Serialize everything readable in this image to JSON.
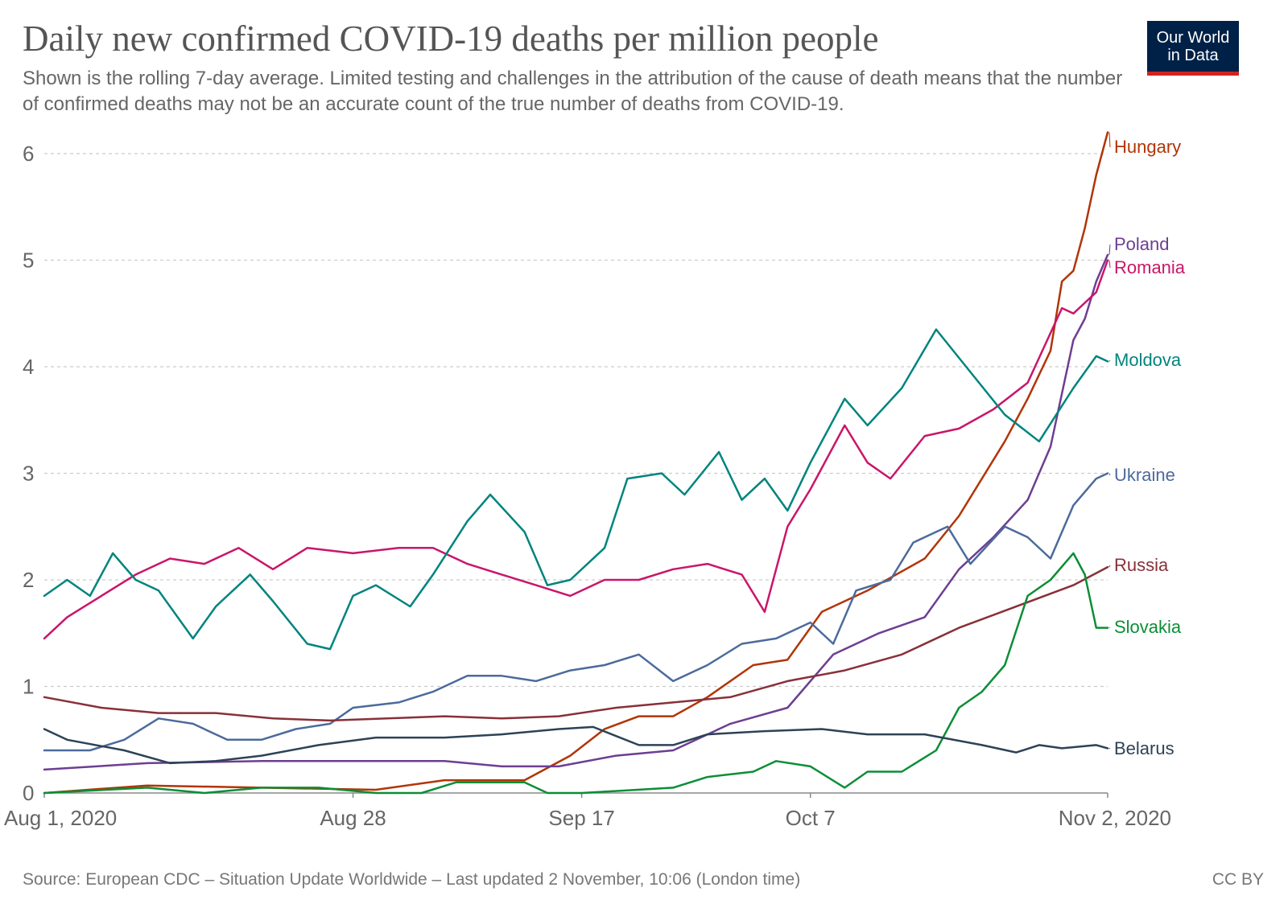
{
  "header": {
    "title": "Daily new confirmed COVID-19 deaths per million people",
    "subtitle": "Shown is the rolling 7-day average. Limited testing and challenges in the attribution of the cause of death means that the number of confirmed deaths may not be an accurate count of the true number of deaths from COVID-19.",
    "logo_line1": "Our World",
    "logo_line2": "in Data"
  },
  "footer": {
    "source": "Source: European CDC – Situation Update Worldwide – Last updated 2 November, 10:06 (London time)",
    "license": "CC BY"
  },
  "colors": {
    "Hungary": "#b13507",
    "Poland": "#6d3e91",
    "Romania": "#c9166a",
    "Moldova": "#00847e",
    "Ukraine": "#4c6a9c",
    "Russia": "#883039",
    "Slovakia": "#0b8e36",
    "Belarus": "#2d4256",
    "grid": "#cccccc",
    "axis": "#888888"
  },
  "chart_data": {
    "type": "line",
    "title": "Daily new confirmed COVID-19 deaths per million people",
    "xlabel": "",
    "ylabel": "",
    "x_start": "2020-08-01",
    "x_end": "2020-11-02",
    "x_tick_labels": [
      "Aug 1, 2020",
      "Aug 28",
      "Sep 17",
      "Oct 7",
      "Nov 2, 2020"
    ],
    "x_tick_dates": [
      "2020-08-01",
      "2020-08-28",
      "2020-09-17",
      "2020-10-07",
      "2020-11-02"
    ],
    "y_ticks": [
      0,
      1,
      2,
      3,
      4,
      5,
      6
    ],
    "ylim": [
      0,
      6
    ],
    "grid": "horizontal dashed",
    "legend": "series names at right end of lines",
    "series": [
      {
        "name": "Hungary",
        "points": [
          [
            "2020-08-01",
            0.0
          ],
          [
            "2020-08-10",
            0.07
          ],
          [
            "2020-08-20",
            0.05
          ],
          [
            "2020-08-30",
            0.03
          ],
          [
            "2020-09-05",
            0.12
          ],
          [
            "2020-09-12",
            0.12
          ],
          [
            "2020-09-16",
            0.35
          ],
          [
            "2020-09-19",
            0.6
          ],
          [
            "2020-09-22",
            0.72
          ],
          [
            "2020-09-25",
            0.72
          ],
          [
            "2020-09-28",
            0.9
          ],
          [
            "2020-10-02",
            1.2
          ],
          [
            "2020-10-05",
            1.25
          ],
          [
            "2020-10-08",
            1.7
          ],
          [
            "2020-10-12",
            1.9
          ],
          [
            "2020-10-17",
            2.2
          ],
          [
            "2020-10-20",
            2.6
          ],
          [
            "2020-10-24",
            3.3
          ],
          [
            "2020-10-26",
            3.7
          ],
          [
            "2020-10-28",
            4.15
          ],
          [
            "2020-10-29",
            4.8
          ],
          [
            "2020-10-30",
            4.9
          ],
          [
            "2020-10-31",
            5.3
          ],
          [
            "2020-11-01",
            5.8
          ],
          [
            "2020-11-02",
            6.2
          ]
        ]
      },
      {
        "name": "Poland",
        "points": [
          [
            "2020-08-01",
            0.22
          ],
          [
            "2020-08-10",
            0.28
          ],
          [
            "2020-08-20",
            0.3
          ],
          [
            "2020-08-30",
            0.3
          ],
          [
            "2020-09-05",
            0.3
          ],
          [
            "2020-09-10",
            0.25
          ],
          [
            "2020-09-15",
            0.25
          ],
          [
            "2020-09-20",
            0.35
          ],
          [
            "2020-09-25",
            0.4
          ],
          [
            "2020-09-30",
            0.65
          ],
          [
            "2020-10-05",
            0.8
          ],
          [
            "2020-10-09",
            1.3
          ],
          [
            "2020-10-13",
            1.5
          ],
          [
            "2020-10-17",
            1.65
          ],
          [
            "2020-10-20",
            2.1
          ],
          [
            "2020-10-23",
            2.4
          ],
          [
            "2020-10-26",
            2.75
          ],
          [
            "2020-10-28",
            3.25
          ],
          [
            "2020-10-30",
            4.25
          ],
          [
            "2020-10-31",
            4.45
          ],
          [
            "2020-11-01",
            4.8
          ],
          [
            "2020-11-02",
            5.05
          ]
        ]
      },
      {
        "name": "Romania",
        "points": [
          [
            "2020-08-01",
            1.45
          ],
          [
            "2020-08-03",
            1.65
          ],
          [
            "2020-08-06",
            1.85
          ],
          [
            "2020-08-09",
            2.05
          ],
          [
            "2020-08-12",
            2.2
          ],
          [
            "2020-08-15",
            2.15
          ],
          [
            "2020-08-18",
            2.3
          ],
          [
            "2020-08-21",
            2.1
          ],
          [
            "2020-08-24",
            2.3
          ],
          [
            "2020-08-28",
            2.25
          ],
          [
            "2020-09-01",
            2.3
          ],
          [
            "2020-09-04",
            2.3
          ],
          [
            "2020-09-07",
            2.15
          ],
          [
            "2020-09-10",
            2.05
          ],
          [
            "2020-09-13",
            1.95
          ],
          [
            "2020-09-16",
            1.85
          ],
          [
            "2020-09-19",
            2.0
          ],
          [
            "2020-09-22",
            2.0
          ],
          [
            "2020-09-25",
            2.1
          ],
          [
            "2020-09-28",
            2.15
          ],
          [
            "2020-10-01",
            2.05
          ],
          [
            "2020-10-03",
            1.7
          ],
          [
            "2020-10-05",
            2.5
          ],
          [
            "2020-10-07",
            2.85
          ],
          [
            "2020-10-10",
            3.45
          ],
          [
            "2020-10-12",
            3.1
          ],
          [
            "2020-10-14",
            2.95
          ],
          [
            "2020-10-17",
            3.35
          ],
          [
            "2020-10-20",
            3.42
          ],
          [
            "2020-10-23",
            3.6
          ],
          [
            "2020-10-26",
            3.85
          ],
          [
            "2020-10-29",
            4.55
          ],
          [
            "2020-10-30",
            4.5
          ],
          [
            "2020-11-01",
            4.7
          ],
          [
            "2020-11-02",
            5.0
          ]
        ]
      },
      {
        "name": "Moldova",
        "points": [
          [
            "2020-08-01",
            1.85
          ],
          [
            "2020-08-03",
            2.0
          ],
          [
            "2020-08-05",
            1.85
          ],
          [
            "2020-08-07",
            2.25
          ],
          [
            "2020-08-09",
            2.0
          ],
          [
            "2020-08-11",
            1.9
          ],
          [
            "2020-08-14",
            1.45
          ],
          [
            "2020-08-16",
            1.75
          ],
          [
            "2020-08-19",
            2.05
          ],
          [
            "2020-08-21",
            1.8
          ],
          [
            "2020-08-24",
            1.4
          ],
          [
            "2020-08-26",
            1.35
          ],
          [
            "2020-08-28",
            1.85
          ],
          [
            "2020-08-30",
            1.95
          ],
          [
            "2020-09-02",
            1.75
          ],
          [
            "2020-09-04",
            2.05
          ],
          [
            "2020-09-07",
            2.55
          ],
          [
            "2020-09-09",
            2.8
          ],
          [
            "2020-09-12",
            2.45
          ],
          [
            "2020-09-14",
            1.95
          ],
          [
            "2020-09-16",
            2.0
          ],
          [
            "2020-09-19",
            2.3
          ],
          [
            "2020-09-21",
            2.95
          ],
          [
            "2020-09-24",
            3.0
          ],
          [
            "2020-09-26",
            2.8
          ],
          [
            "2020-09-29",
            3.2
          ],
          [
            "2020-10-01",
            2.75
          ],
          [
            "2020-10-03",
            2.95
          ],
          [
            "2020-10-05",
            2.65
          ],
          [
            "2020-10-07",
            3.1
          ],
          [
            "2020-10-10",
            3.7
          ],
          [
            "2020-10-12",
            3.45
          ],
          [
            "2020-10-15",
            3.8
          ],
          [
            "2020-10-18",
            4.35
          ],
          [
            "2020-10-21",
            3.95
          ],
          [
            "2020-10-24",
            3.55
          ],
          [
            "2020-10-27",
            3.3
          ],
          [
            "2020-10-30",
            3.8
          ],
          [
            "2020-11-01",
            4.1
          ],
          [
            "2020-11-02",
            4.05
          ]
        ]
      },
      {
        "name": "Ukraine",
        "points": [
          [
            "2020-08-01",
            0.4
          ],
          [
            "2020-08-05",
            0.4
          ],
          [
            "2020-08-08",
            0.5
          ],
          [
            "2020-08-11",
            0.7
          ],
          [
            "2020-08-14",
            0.65
          ],
          [
            "2020-08-17",
            0.5
          ],
          [
            "2020-08-20",
            0.5
          ],
          [
            "2020-08-23",
            0.6
          ],
          [
            "2020-08-26",
            0.65
          ],
          [
            "2020-08-28",
            0.8
          ],
          [
            "2020-09-01",
            0.85
          ],
          [
            "2020-09-04",
            0.95
          ],
          [
            "2020-09-07",
            1.1
          ],
          [
            "2020-09-10",
            1.1
          ],
          [
            "2020-09-13",
            1.05
          ],
          [
            "2020-09-16",
            1.15
          ],
          [
            "2020-09-19",
            1.2
          ],
          [
            "2020-09-22",
            1.3
          ],
          [
            "2020-09-25",
            1.05
          ],
          [
            "2020-09-28",
            1.2
          ],
          [
            "2020-10-01",
            1.4
          ],
          [
            "2020-10-04",
            1.45
          ],
          [
            "2020-10-07",
            1.6
          ],
          [
            "2020-10-09",
            1.4
          ],
          [
            "2020-10-11",
            1.9
          ],
          [
            "2020-10-14",
            2.0
          ],
          [
            "2020-10-16",
            2.35
          ],
          [
            "2020-10-19",
            2.5
          ],
          [
            "2020-10-21",
            2.15
          ],
          [
            "2020-10-24",
            2.5
          ],
          [
            "2020-10-26",
            2.4
          ],
          [
            "2020-10-28",
            2.2
          ],
          [
            "2020-10-30",
            2.7
          ],
          [
            "2020-11-01",
            2.95
          ],
          [
            "2020-11-02",
            3.0
          ]
        ]
      },
      {
        "name": "Russia",
        "points": [
          [
            "2020-08-01",
            0.9
          ],
          [
            "2020-08-06",
            0.8
          ],
          [
            "2020-08-11",
            0.75
          ],
          [
            "2020-08-16",
            0.75
          ],
          [
            "2020-08-21",
            0.7
          ],
          [
            "2020-08-26",
            0.68
          ],
          [
            "2020-08-31",
            0.7
          ],
          [
            "2020-09-05",
            0.72
          ],
          [
            "2020-09-10",
            0.7
          ],
          [
            "2020-09-15",
            0.72
          ],
          [
            "2020-09-20",
            0.8
          ],
          [
            "2020-09-25",
            0.85
          ],
          [
            "2020-09-30",
            0.9
          ],
          [
            "2020-10-05",
            1.05
          ],
          [
            "2020-10-10",
            1.15
          ],
          [
            "2020-10-15",
            1.3
          ],
          [
            "2020-10-20",
            1.55
          ],
          [
            "2020-10-25",
            1.75
          ],
          [
            "2020-10-30",
            1.95
          ],
          [
            "2020-11-02",
            2.12
          ]
        ]
      },
      {
        "name": "Slovakia",
        "points": [
          [
            "2020-08-01",
            0.0
          ],
          [
            "2020-08-10",
            0.05
          ],
          [
            "2020-08-15",
            0.0
          ],
          [
            "2020-08-20",
            0.05
          ],
          [
            "2020-08-25",
            0.05
          ],
          [
            "2020-08-30",
            0.0
          ],
          [
            "2020-09-03",
            0.0
          ],
          [
            "2020-09-06",
            0.1
          ],
          [
            "2020-09-12",
            0.1
          ],
          [
            "2020-09-14",
            0.0
          ],
          [
            "2020-09-17",
            0.0
          ],
          [
            "2020-09-25",
            0.05
          ],
          [
            "2020-09-28",
            0.15
          ],
          [
            "2020-10-02",
            0.2
          ],
          [
            "2020-10-04",
            0.3
          ],
          [
            "2020-10-07",
            0.25
          ],
          [
            "2020-10-10",
            0.05
          ],
          [
            "2020-10-12",
            0.2
          ],
          [
            "2020-10-15",
            0.2
          ],
          [
            "2020-10-18",
            0.4
          ],
          [
            "2020-10-20",
            0.8
          ],
          [
            "2020-10-22",
            0.95
          ],
          [
            "2020-10-24",
            1.2
          ],
          [
            "2020-10-26",
            1.85
          ],
          [
            "2020-10-28",
            2.0
          ],
          [
            "2020-10-30",
            2.25
          ],
          [
            "2020-10-31",
            2.05
          ],
          [
            "2020-11-01",
            1.55
          ],
          [
            "2020-11-02",
            1.55
          ]
        ]
      },
      {
        "name": "Belarus",
        "points": [
          [
            "2020-08-01",
            0.6
          ],
          [
            "2020-08-03",
            0.5
          ],
          [
            "2020-08-08",
            0.4
          ],
          [
            "2020-08-12",
            0.28
          ],
          [
            "2020-08-16",
            0.3
          ],
          [
            "2020-08-20",
            0.35
          ],
          [
            "2020-08-25",
            0.45
          ],
          [
            "2020-08-30",
            0.52
          ],
          [
            "2020-09-05",
            0.52
          ],
          [
            "2020-09-10",
            0.55
          ],
          [
            "2020-09-15",
            0.6
          ],
          [
            "2020-09-18",
            0.62
          ],
          [
            "2020-09-22",
            0.45
          ],
          [
            "2020-09-25",
            0.45
          ],
          [
            "2020-09-28",
            0.55
          ],
          [
            "2020-10-03",
            0.58
          ],
          [
            "2020-10-08",
            0.6
          ],
          [
            "2020-10-12",
            0.55
          ],
          [
            "2020-10-17",
            0.55
          ],
          [
            "2020-10-22",
            0.45
          ],
          [
            "2020-10-25",
            0.38
          ],
          [
            "2020-10-27",
            0.45
          ],
          [
            "2020-10-29",
            0.42
          ],
          [
            "2020-11-01",
            0.45
          ],
          [
            "2020-11-02",
            0.42
          ]
        ]
      }
    ]
  }
}
